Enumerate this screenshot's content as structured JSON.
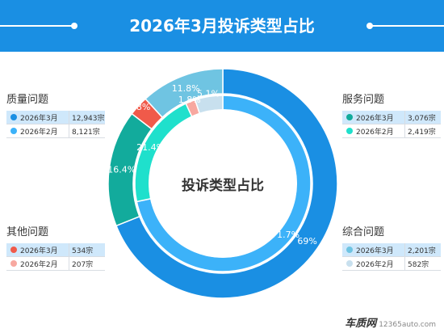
{
  "title": "2026年3月投诉类型占比",
  "chart_data": {
    "type": "pie",
    "center_label": "投诉类型占比",
    "series": [
      {
        "name": "2026年3月",
        "values": [
          69,
          16.4,
          2.8,
          11.8
        ]
      },
      {
        "name": "2026年2月",
        "values": [
          71.7,
          21.4,
          1.8,
          5.1
        ]
      }
    ],
    "categories": [
      "质量问题",
      "服务问题",
      "其他问题",
      "综合问题"
    ],
    "colors": {
      "outer": [
        "#1a8fe3",
        "#12ab9c",
        "#f05a4a",
        "#6fc4e2"
      ],
      "inner": [
        "#3cb2f9",
        "#1fe0cc",
        "#f7a8a0",
        "#c8e0ee"
      ]
    }
  },
  "legends": {
    "quality": {
      "title": "质量问题",
      "rows": [
        {
          "month": "2026年3月",
          "value": "12,943宗"
        },
        {
          "month": "2026年2月",
          "value": "8,121宗"
        }
      ]
    },
    "service": {
      "title": "服务问题",
      "rows": [
        {
          "month": "2026年3月",
          "value": "3,076宗"
        },
        {
          "month": "2026年2月",
          "value": "2,419宗"
        }
      ]
    },
    "other": {
      "title": "其他问题",
      "rows": [
        {
          "month": "2026年3月",
          "value": "534宗"
        },
        {
          "month": "2026年2月",
          "value": "207宗"
        }
      ]
    },
    "general": {
      "title": "综合问题",
      "rows": [
        {
          "month": "2026年3月",
          "value": "2,201宗"
        },
        {
          "month": "2026年2月",
          "value": "582宗"
        }
      ]
    }
  },
  "watermark": {
    "brand": "车质网",
    "url": "12365auto.com"
  }
}
